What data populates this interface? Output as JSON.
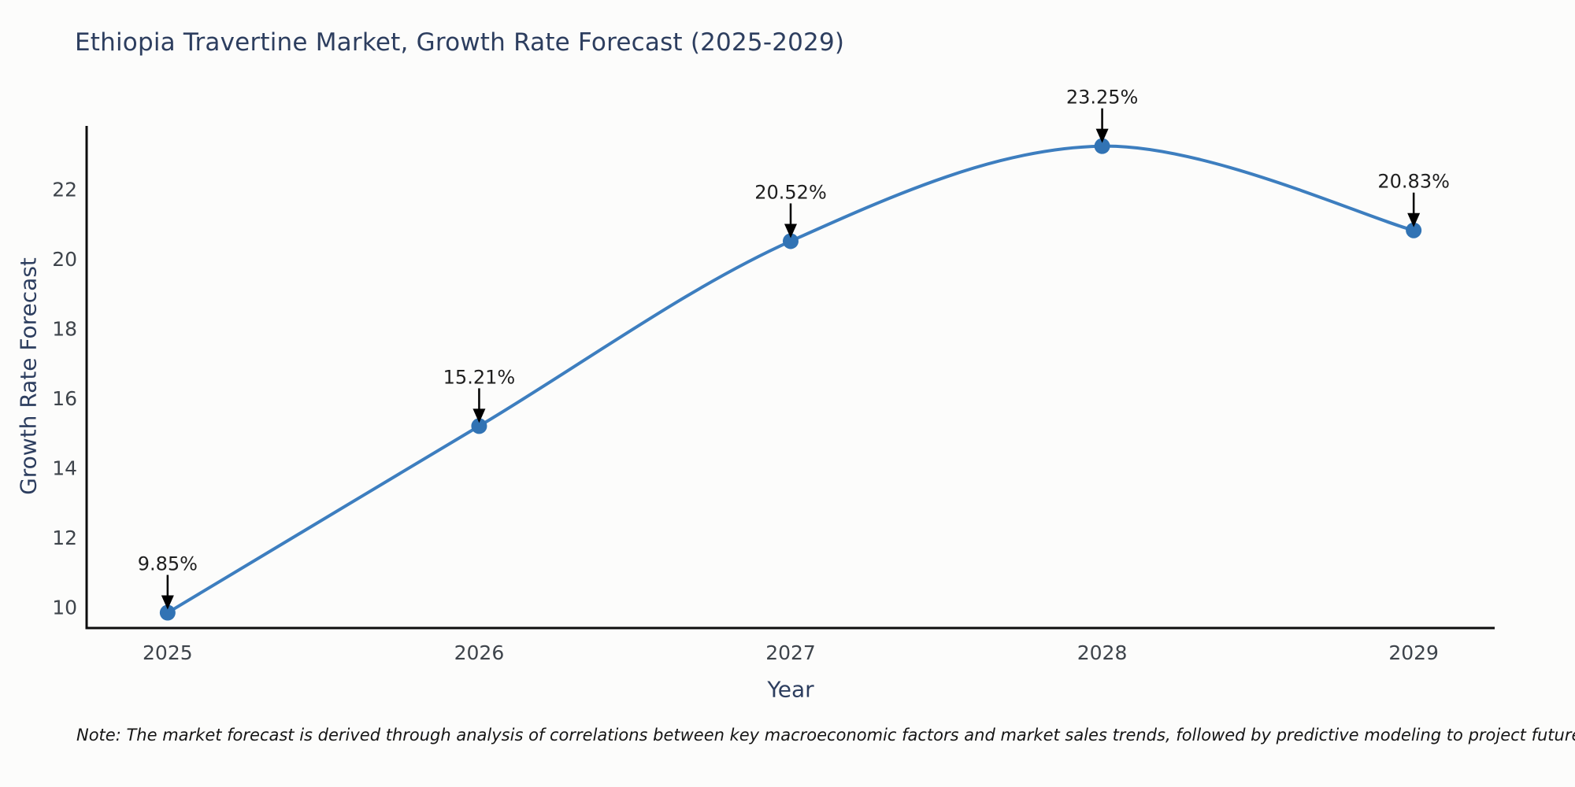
{
  "chart_data": {
    "type": "line",
    "title": "Ethiopia Travertine Market, Growth Rate Forecast (2025-2029)",
    "xlabel": "Year",
    "ylabel": "Growth Rate Forecast",
    "x": [
      2025,
      2026,
      2027,
      2028,
      2029
    ],
    "values": [
      9.85,
      15.21,
      20.52,
      23.25,
      20.83
    ],
    "point_labels": [
      "9.85%",
      "15.21%",
      "20.52%",
      "23.25%",
      "20.83%"
    ],
    "x_ticks": [
      2025,
      2026,
      2027,
      2028,
      2029
    ],
    "y_ticks": [
      10,
      12,
      14,
      16,
      18,
      20,
      22
    ],
    "xlim": [
      2024.74,
      2029.26
    ],
    "ylim": [
      9.41,
      23.83
    ],
    "grid": false,
    "legend": "none",
    "smooth_spline": true,
    "note": "Note: The market forecast is derived through analysis of correlations between key macroeconomic factors and market sales trends, followed by predictive modeling to project future sales"
  },
  "colors": {
    "background": "#fcfcfb",
    "line": "#3d7ebf",
    "marker": "#3173b4",
    "axis": "#0d0d0d",
    "tick_label": "#3e444b",
    "annotation_text": "#1e1e1e",
    "annotation_arrow": "#000000",
    "title_text": "#2d3e5f"
  }
}
